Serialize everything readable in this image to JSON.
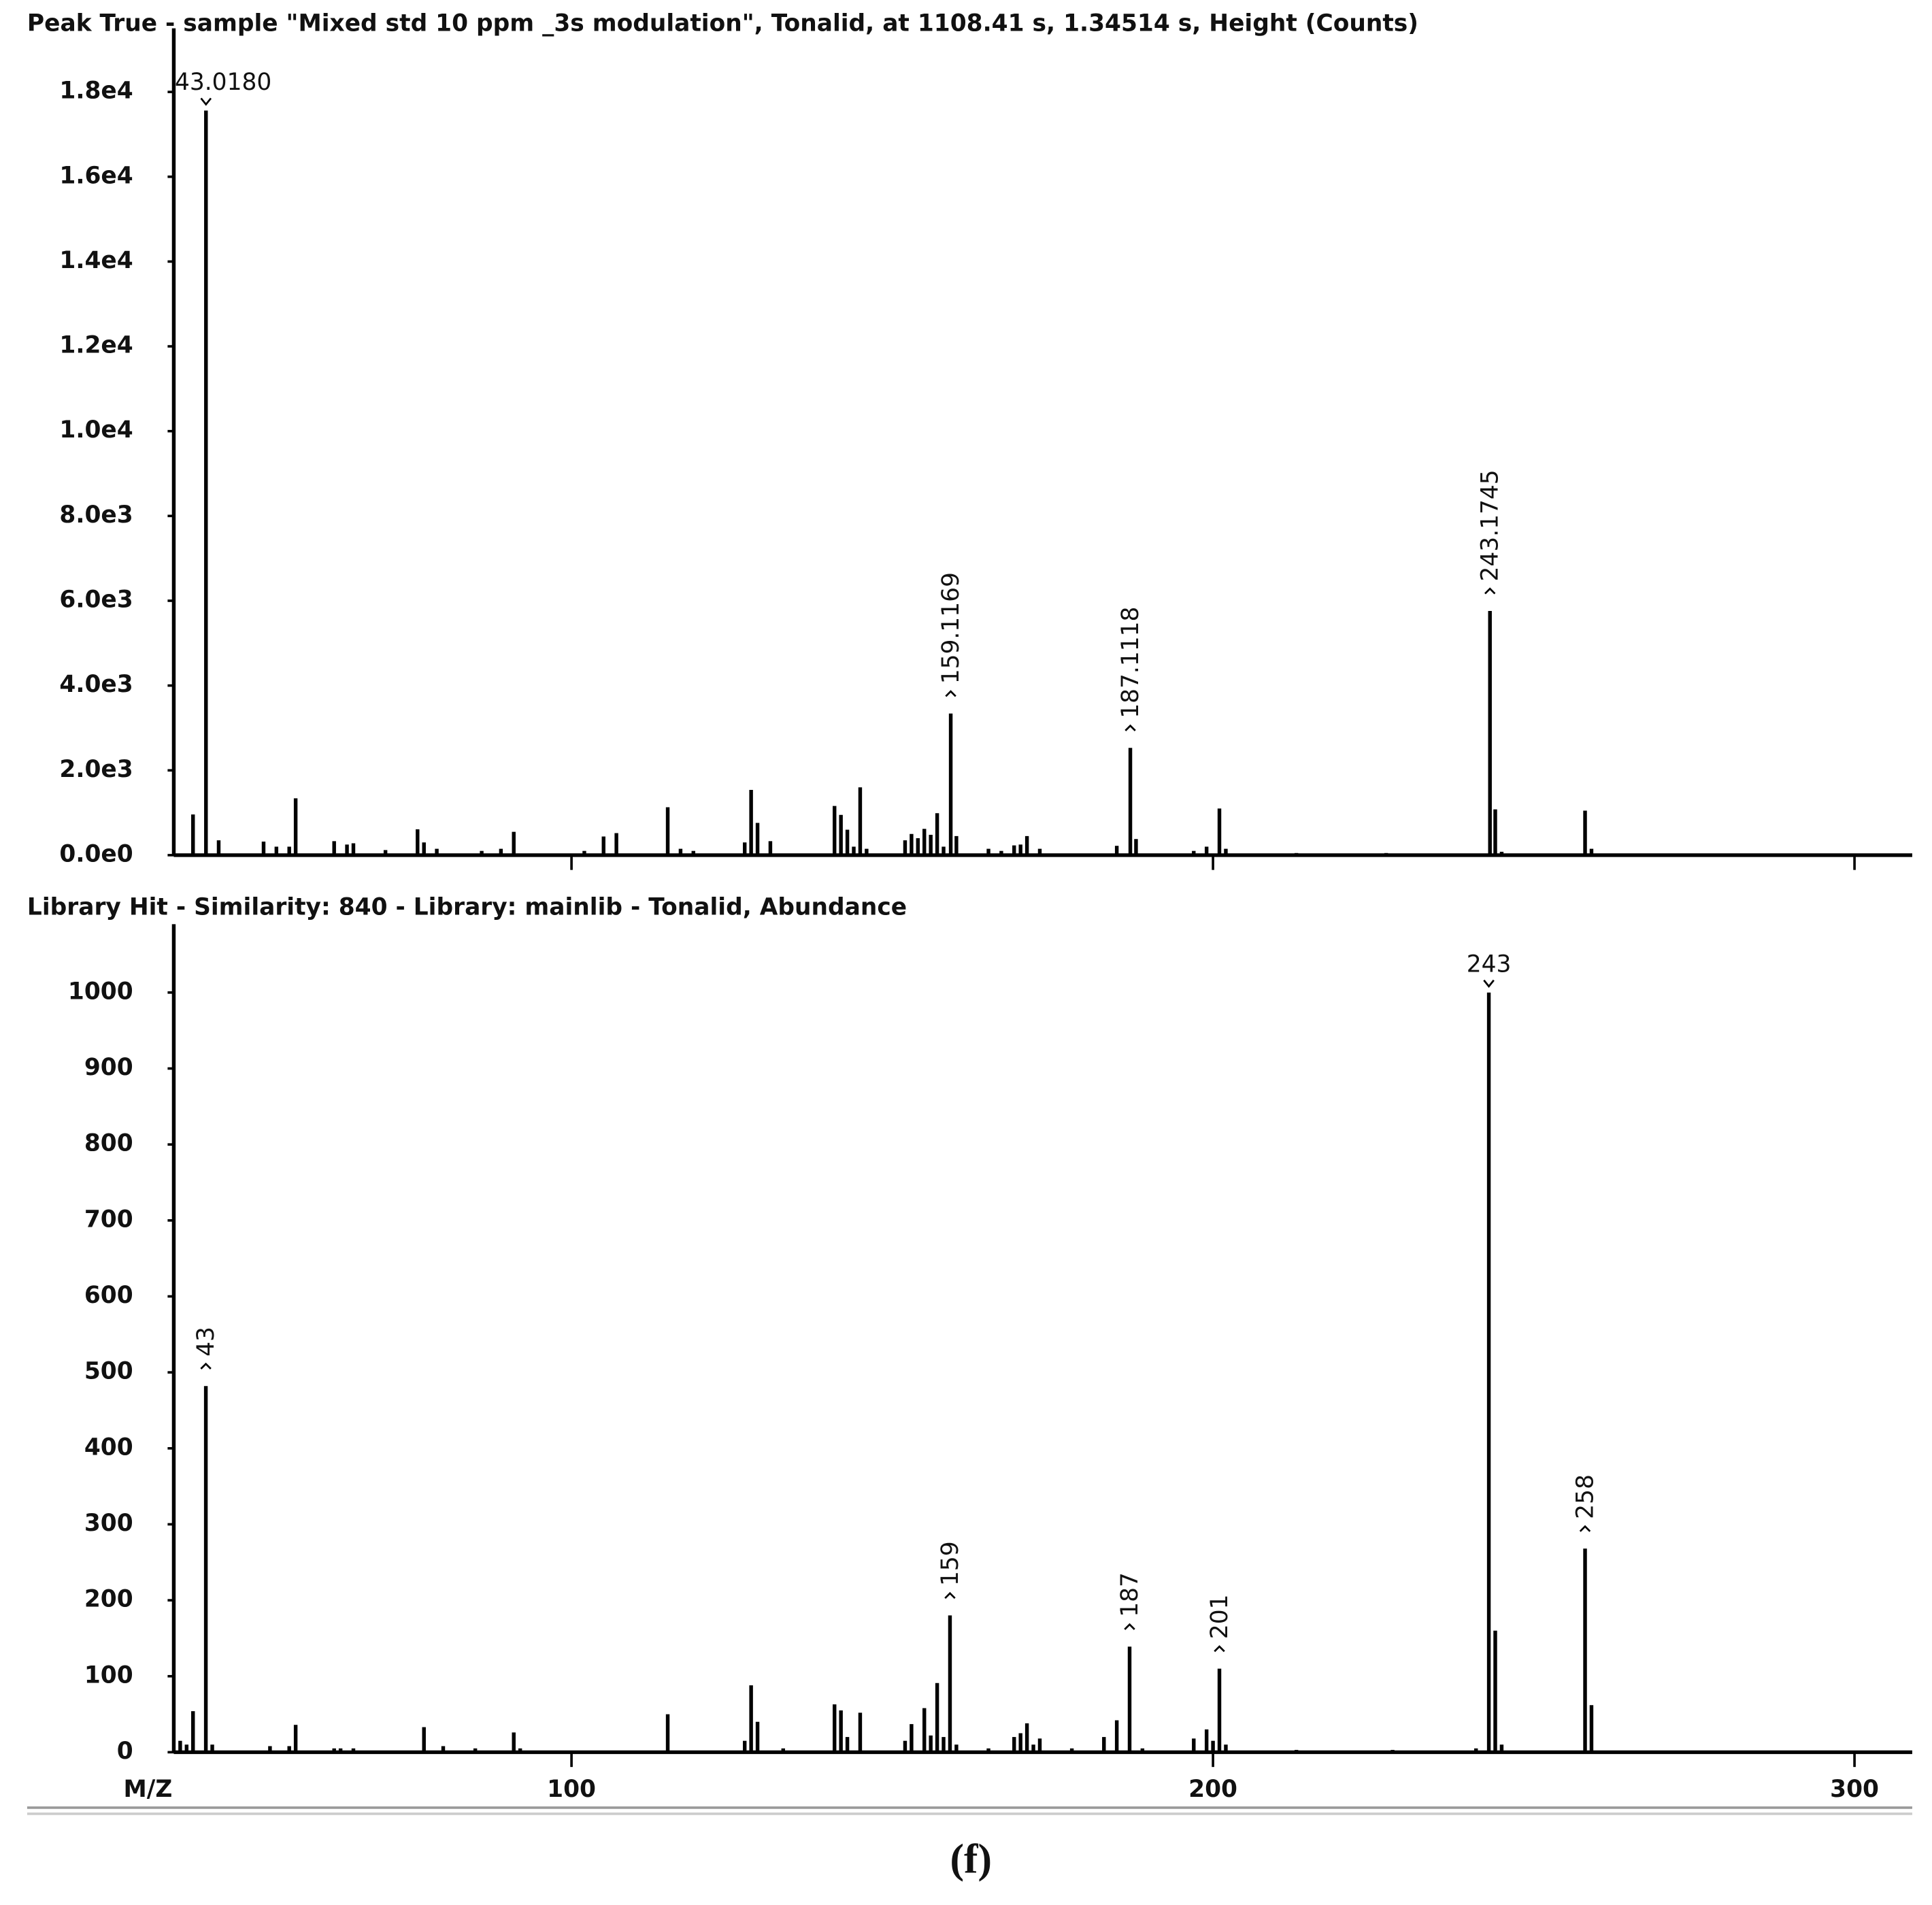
{
  "chart_data": [
    {
      "type": "stem",
      "title": "Peak True - sample \"Mixed std 10 ppm _3s modulation\", Tonalid, at 1108.41 s, 1.34514 s, Height (Counts)",
      "x": [
        41,
        43.018,
        45,
        52,
        54,
        56,
        57,
        63,
        65,
        66,
        71,
        76,
        77,
        79,
        86,
        89,
        91,
        102,
        105,
        107,
        115,
        117,
        119,
        127,
        128,
        129,
        131,
        141,
        142,
        143,
        144,
        145,
        146,
        152,
        153,
        154,
        155,
        156,
        157,
        158,
        159.1169,
        160,
        165,
        167,
        169,
        170,
        171,
        173,
        185,
        187.1118,
        188,
        197,
        199,
        201,
        202,
        213,
        227,
        243.1745,
        244,
        245,
        258,
        259
      ],
      "values": [
        960,
        17560,
        350,
        320,
        200,
        200,
        1340,
        330,
        250,
        280,
        120,
        610,
        300,
        150,
        100,
        150,
        550,
        100,
        440,
        520,
        1130,
        150,
        100,
        300,
        1540,
        760,
        330,
        1160,
        950,
        600,
        200,
        1600,
        150,
        350,
        500,
        400,
        620,
        480,
        990,
        200,
        3340,
        450,
        150,
        100,
        230,
        250,
        450,
        150,
        220,
        2530,
        380,
        100,
        200,
        1100,
        150,
        50,
        50,
        5760,
        1080,
        80,
        1050,
        150
      ],
      "color": "#000000",
      "annotations": [
        {
          "x": 43.018,
          "text": "43.0180",
          "orientation": "horizontal"
        },
        {
          "x": 159.1169,
          "text": "159.1169",
          "orientation": "vertical"
        },
        {
          "x": 187.1118,
          "text": "187.1118",
          "orientation": "vertical"
        },
        {
          "x": 243.1745,
          "text": "243.1745",
          "orientation": "vertical"
        }
      ],
      "xlim": [
        38,
        309
      ],
      "xticks": [
        100,
        200,
        300
      ],
      "show_xtick_labels": false,
      "ylim": [
        0,
        19500
      ],
      "yticks": [
        {
          "value": 0,
          "label": "0.0e0"
        },
        {
          "value": 2000,
          "label": "2.0e3"
        },
        {
          "value": 4000,
          "label": "4.0e3"
        },
        {
          "value": 6000,
          "label": "6.0e3"
        },
        {
          "value": 8000,
          "label": "8.0e3"
        },
        {
          "value": 10000,
          "label": "1.0e4"
        },
        {
          "value": 12000,
          "label": "1.2e4"
        },
        {
          "value": 14000,
          "label": "1.4e4"
        },
        {
          "value": 16000,
          "label": "1.6e4"
        },
        {
          "value": 18000,
          "label": "1.8e4"
        }
      ]
    },
    {
      "type": "stem",
      "title": "Library Hit - Similarity: 840 - Library: mainlib - Tonalid, Abundance",
      "x_label": "M/Z",
      "x": [
        39,
        40,
        41,
        43,
        44,
        53,
        56,
        57,
        63,
        64,
        66,
        77,
        80,
        85,
        91,
        92,
        115,
        127,
        128,
        129,
        133,
        141,
        142,
        143,
        145,
        152,
        153,
        155,
        156,
        157,
        158,
        159,
        160,
        165,
        169,
        170,
        171,
        172,
        173,
        178,
        183,
        185,
        187,
        189,
        197,
        199,
        200,
        201,
        202,
        213,
        228,
        241,
        243,
        244,
        245,
        258,
        259
      ],
      "values": [
        15,
        10,
        54,
        482,
        10,
        8,
        8,
        36,
        5,
        5,
        5,
        33,
        8,
        5,
        26,
        5,
        50,
        15,
        88,
        40,
        5,
        63,
        55,
        20,
        52,
        15,
        37,
        58,
        22,
        91,
        20,
        180,
        10,
        5,
        20,
        25,
        38,
        10,
        18,
        5,
        20,
        42,
        139,
        5,
        18,
        30,
        15,
        110,
        10,
        3,
        3,
        5,
        1000,
        160,
        10,
        268,
        62
      ],
      "color": "#000000",
      "annotations": [
        {
          "x": 43,
          "text": "43",
          "orientation": "vertical"
        },
        {
          "x": 159,
          "text": "159",
          "orientation": "vertical"
        },
        {
          "x": 187,
          "text": "187",
          "orientation": "vertical"
        },
        {
          "x": 201,
          "text": "201",
          "orientation": "vertical"
        },
        {
          "x": 243,
          "text": "243",
          "orientation": "horizontal"
        },
        {
          "x": 258,
          "text": "258",
          "orientation": "vertical"
        }
      ],
      "xlim": [
        38,
        309
      ],
      "xticks": [
        100,
        200,
        300
      ],
      "show_xtick_labels": true,
      "ylim": [
        0,
        1090
      ],
      "yticks": [
        0,
        100,
        200,
        300,
        400,
        500,
        600,
        700,
        800,
        900,
        1000
      ]
    }
  ],
  "caption": "(f)"
}
